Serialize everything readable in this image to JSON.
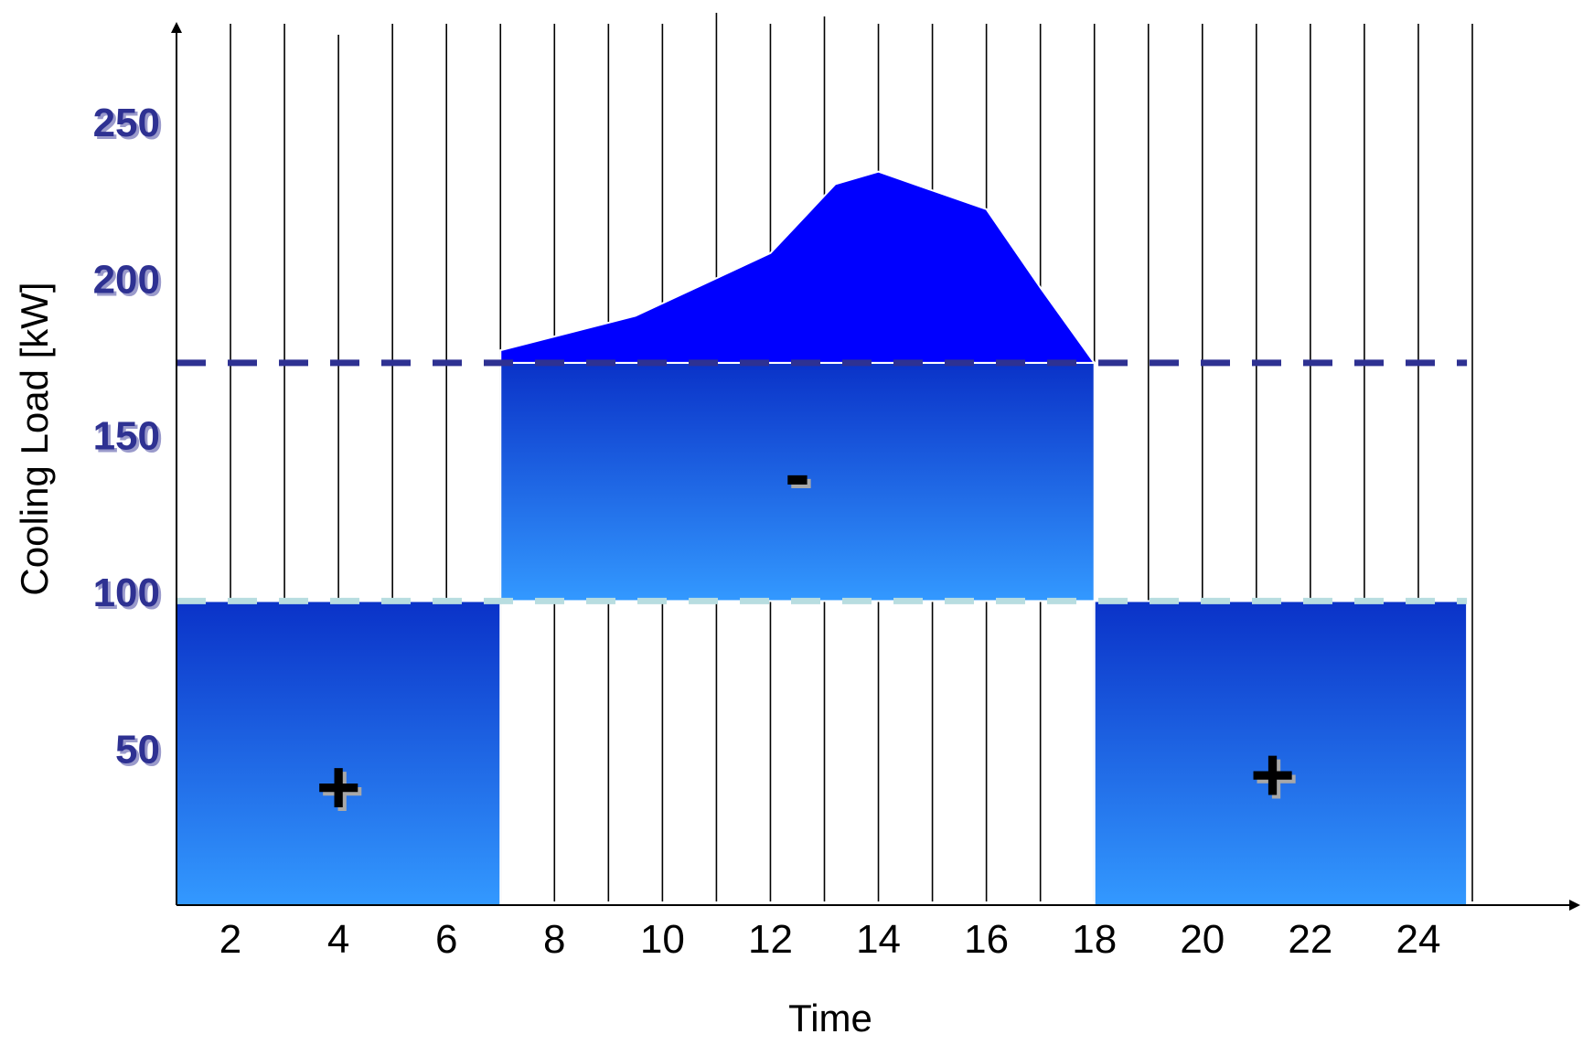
{
  "chart_data": {
    "type": "area",
    "title": "",
    "xlabel": "Time",
    "ylabel": "Cooling Load  [kW]",
    "x_ticks": [
      2,
      4,
      6,
      8,
      10,
      12,
      14,
      16,
      18,
      20,
      22,
      24
    ],
    "y_ticks": [
      50,
      100,
      150,
      200,
      250
    ],
    "xlim": [
      1,
      25
    ],
    "ylim": [
      0,
      280
    ],
    "grid": "vertical",
    "reference_lines": [
      {
        "level": 173,
        "style": "dashed",
        "color": "#2e3192"
      },
      {
        "level": 97,
        "style": "dashed",
        "color": "#b8dde0"
      }
    ],
    "regions": [
      {
        "x_start": 1,
        "x_end": 7,
        "y_start": 0,
        "y_end": 97,
        "sign": "+",
        "sign_x": 4,
        "sign_y": 38
      },
      {
        "x_start": 7,
        "x_end": 18,
        "y_start": 97,
        "y_end": 173,
        "sign": "-",
        "sign_x": 12.5,
        "sign_y": 138
      },
      {
        "x_start": 18,
        "x_end": 24.9,
        "y_start": 0,
        "y_end": 97,
        "sign": "+",
        "sign_x": 21.3,
        "sign_y": 42
      }
    ],
    "series": [
      {
        "x": [
          7,
          9.5,
          12,
          13.2,
          14,
          15,
          16,
          17,
          18
        ],
        "y": [
          177,
          188,
          208,
          230,
          234,
          228,
          222,
          197,
          173
        ]
      }
    ],
    "colors": {
      "peak_fill": "#0000ff",
      "region_top": "#0a32c8",
      "region_bottom": "#3399ff",
      "grid": "#000000",
      "axis_tick_color": "#2e3192"
    }
  }
}
